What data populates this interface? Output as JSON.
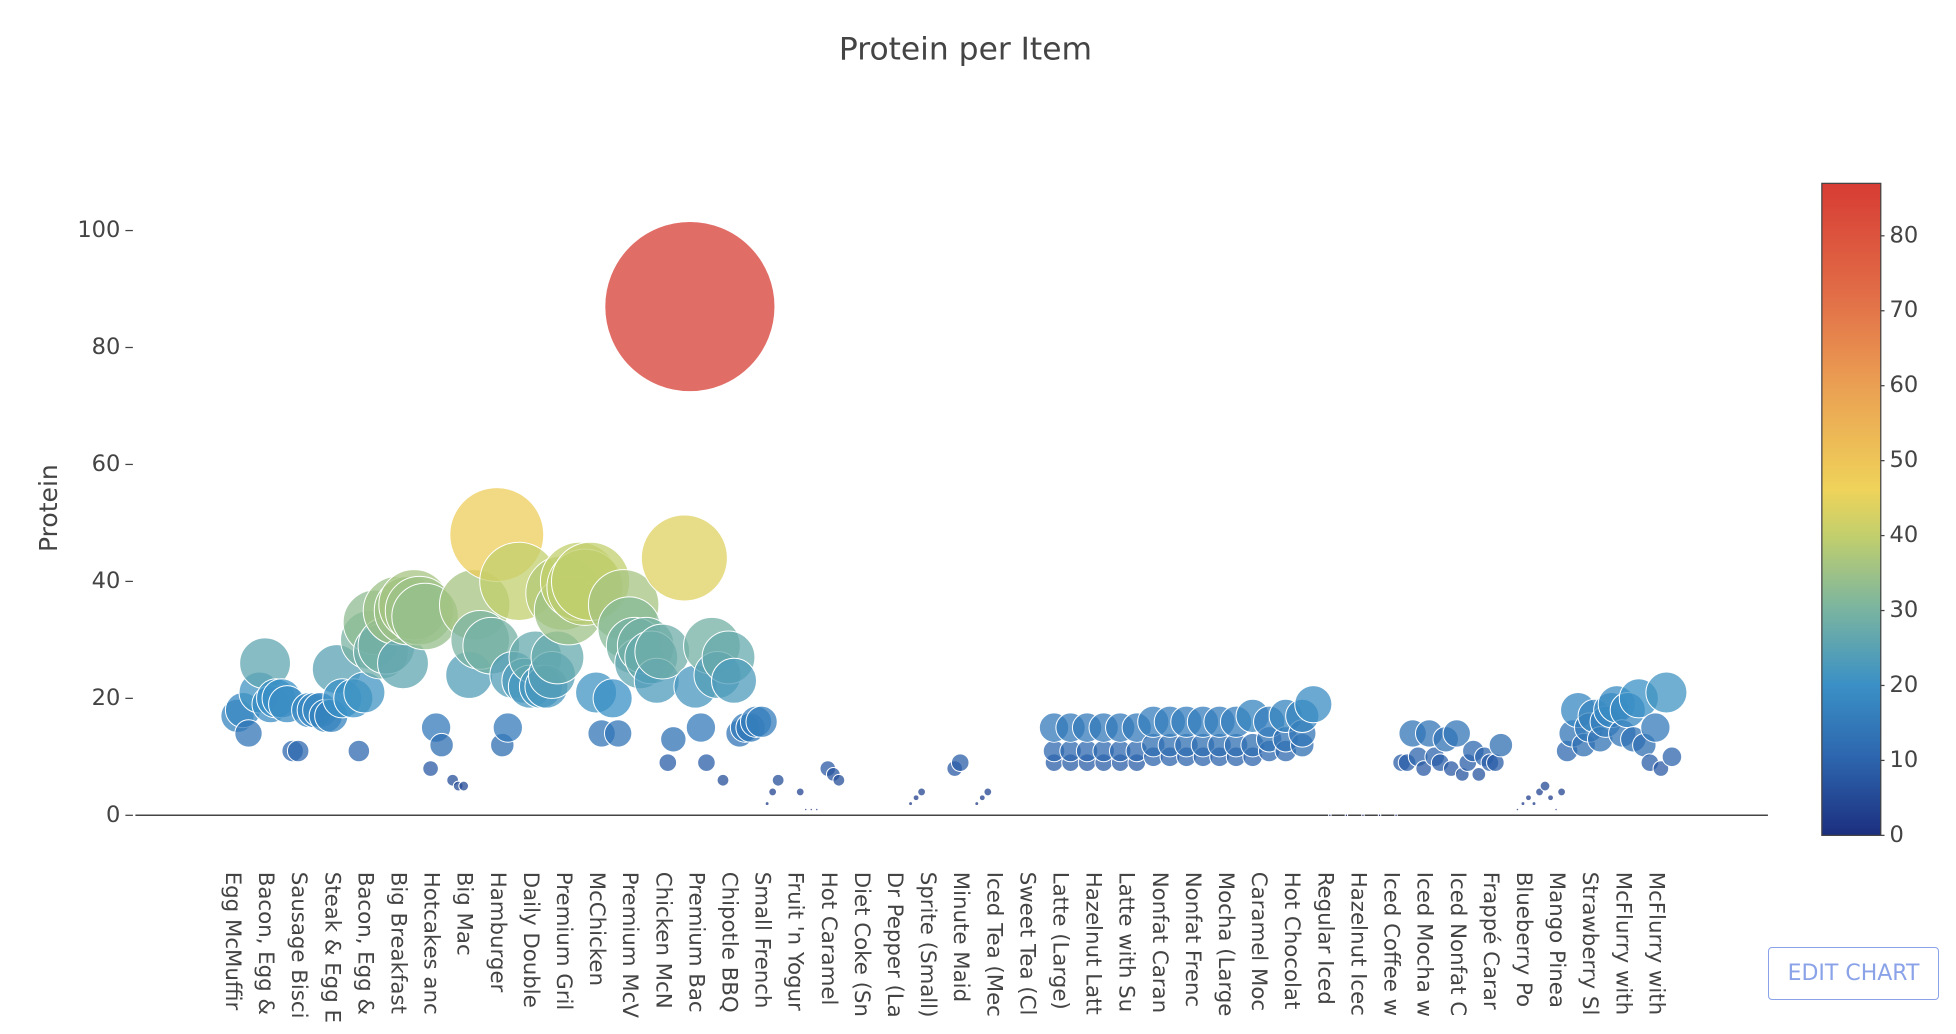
{
  "chart_data": {
    "type": "scatter",
    "title": "Protein per Item",
    "ylabel": "Protein",
    "x": [
      1,
      2,
      3,
      5,
      6,
      7,
      8,
      9,
      10,
      11,
      12,
      14,
      15,
      16,
      17,
      18,
      19,
      20,
      22,
      23,
      24,
      25,
      26,
      27,
      28,
      30,
      31,
      32,
      33,
      34,
      35,
      36,
      37,
      38,
      40,
      41,
      42,
      43,
      44,
      45,
      47,
      48,
      49,
      50,
      51,
      52,
      53,
      54,
      55,
      56,
      57,
      58,
      59,
      60,
      61,
      63,
      64,
      65,
      66,
      67,
      69,
      70,
      71,
      72,
      73,
      74,
      75,
      76,
      77,
      78,
      79,
      80,
      82,
      83,
      84,
      85,
      86,
      87,
      88,
      89,
      90,
      91,
      92,
      93,
      94,
      95,
      96,
      97,
      98,
      99,
      103,
      104,
      105,
      106,
      108,
      109,
      110,
      123,
      124,
      125,
      131,
      132,
      135,
      136,
      137,
      149,
      149,
      149,
      152,
      152,
      152,
      155,
      155,
      155,
      158,
      158,
      158,
      161,
      161,
      161,
      164,
      164,
      164,
      167,
      167,
      167,
      170,
      170,
      170,
      173,
      173,
      173,
      176,
      176,
      176,
      179,
      179,
      179,
      182,
      182,
      182,
      185,
      185,
      185,
      188,
      188,
      188,
      191,
      191,
      191,
      194,
      194,
      194,
      196,
      199,
      202,
      205,
      208,
      211,
      212,
      213,
      214,
      215,
      216,
      217,
      218,
      219,
      220,
      221,
      222,
      223,
      224,
      225,
      226,
      227,
      228,
      229,
      230,
      233,
      234,
      235,
      236,
      237,
      238,
      239,
      240,
      241,
      242,
      243,
      244,
      245,
      246,
      247,
      248,
      249,
      250,
      251,
      252,
      253,
      254,
      255,
      256,
      257,
      258,
      259,
      260,
      261
    ],
    "y": [
      17,
      18,
      14,
      21,
      26,
      19,
      20,
      20,
      19,
      11,
      11,
      18,
      18,
      18,
      17,
      17,
      25,
      20,
      20,
      11,
      21,
      30,
      33,
      28,
      29,
      35,
      26,
      35,
      36,
      35,
      34,
      8,
      15,
      12,
      6,
      5,
      5,
      24,
      36,
      30,
      29,
      48,
      12,
      15,
      24,
      40,
      23,
      22,
      27,
      22,
      22,
      24,
      27,
      38,
      35,
      40,
      39,
      40,
      21,
      14,
      20,
      14,
      36,
      32,
      29,
      26,
      29,
      27,
      23,
      28,
      9,
      13,
      44,
      87,
      22,
      15,
      9,
      29,
      24,
      6,
      27,
      23,
      14,
      15,
      15,
      16,
      16,
      2,
      4,
      6,
      4,
      1,
      1,
      1,
      8,
      7,
      6,
      2,
      3,
      4,
      8,
      9,
      2,
      3,
      4,
      9,
      11,
      15,
      9,
      11,
      15,
      9,
      11,
      15,
      9,
      11,
      15,
      9,
      11,
      15,
      9,
      11,
      15,
      10,
      12,
      16,
      10,
      12,
      16,
      10,
      12,
      16,
      10,
      12,
      16,
      10,
      12,
      16,
      10,
      12,
      16,
      10,
      12,
      17,
      11,
      13,
      16,
      11,
      13,
      17,
      12,
      14,
      17,
      19,
      0,
      0,
      0,
      0,
      0,
      9,
      9,
      14,
      10,
      8,
      14,
      10,
      9,
      13,
      8,
      14,
      7,
      9,
      11,
      7,
      10,
      9,
      9,
      12,
      1,
      2,
      3,
      2,
      4,
      5,
      3,
      1,
      4,
      11,
      14,
      18,
      12,
      15,
      17,
      13,
      16,
      18,
      19,
      14,
      18,
      13,
      20,
      12,
      9,
      15,
      8,
      21,
      10
    ],
    "xlim": [
      -17.5,
      278.4
    ],
    "ylim": [
      0,
      110
    ],
    "yticks": [
      0,
      20,
      40,
      60,
      80,
      100
    ],
    "xticks": [
      {
        "value": 0,
        "label": "Egg McMuffir"
      },
      {
        "value": 6,
        "label": "Bacon, Egg &"
      },
      {
        "value": 12,
        "label": "Sausage Bisci"
      },
      {
        "value": 18,
        "label": "Steak & Egg E"
      },
      {
        "value": 24,
        "label": "Bacon, Egg &"
      },
      {
        "value": 30,
        "label": "Big Breakfast"
      },
      {
        "value": 36,
        "label": "Hotcakes anc"
      },
      {
        "value": 42,
        "label": "Big Mac"
      },
      {
        "value": 48,
        "label": "Hamburger"
      },
      {
        "value": 54,
        "label": "Daily Double"
      },
      {
        "value": 60,
        "label": "Premium Gril"
      },
      {
        "value": 66,
        "label": "McChicken"
      },
      {
        "value": 72,
        "label": "Premium McV"
      },
      {
        "value": 78,
        "label": "Chicken McN"
      },
      {
        "value": 84,
        "label": "Premium Bac"
      },
      {
        "value": 90,
        "label": "Chipotle BBQ"
      },
      {
        "value": 96,
        "label": "Small French"
      },
      {
        "value": 102,
        "label": "Fruit 'n Yogur"
      },
      {
        "value": 108,
        "label": "Hot Caramel"
      },
      {
        "value": 114,
        "label": "Diet Coke (Sn"
      },
      {
        "value": 120,
        "label": "Dr Pepper (La"
      },
      {
        "value": 126,
        "label": "Sprite (Small)"
      },
      {
        "value": 132,
        "label": "Minute Maid"
      },
      {
        "value": 138,
        "label": "Iced Tea (Mec"
      },
      {
        "value": 144,
        "label": "Sweet Tea (Cl"
      },
      {
        "value": 150,
        "label": "Latte (Large)"
      },
      {
        "value": 156,
        "label": "Hazelnut Latt"
      },
      {
        "value": 162,
        "label": "Latte with Su"
      },
      {
        "value": 168,
        "label": "Nonfat Caran"
      },
      {
        "value": 174,
        "label": "Nonfat Frenc"
      },
      {
        "value": 180,
        "label": "Mocha (Large"
      },
      {
        "value": 186,
        "label": "Caramel Moc"
      },
      {
        "value": 192,
        "label": "Hot Chocolat"
      },
      {
        "value": 198,
        "label": "Regular Iced"
      },
      {
        "value": 204,
        "label": "Hazelnut Icec"
      },
      {
        "value": 210,
        "label": "Iced Coffee w"
      },
      {
        "value": 216,
        "label": "Iced Mocha w"
      },
      {
        "value": 222,
        "label": "Iced Nonfat C"
      },
      {
        "value": 228,
        "label": "Frappé Carar"
      },
      {
        "value": 234,
        "label": "Blueberry Po"
      },
      {
        "value": 240,
        "label": "Mango Pinea"
      },
      {
        "value": 246,
        "label": "Strawberry Sl"
      },
      {
        "value": 252,
        "label": "McFlurry with"
      },
      {
        "value": 258,
        "label": "McFlurry with"
      }
    ],
    "colorbar": {
      "lim": [
        0,
        87
      ],
      "ticks": [
        0,
        10,
        20,
        30,
        40,
        50,
        60,
        70,
        80
      ],
      "colorscale": [
        [
          0,
          "#1c2f7f"
        ],
        [
          0.12,
          "#2d66ae"
        ],
        [
          0.23,
          "#3a90c6"
        ],
        [
          0.35,
          "#7cb59f"
        ],
        [
          0.46,
          "#c2cf6c"
        ],
        [
          0.53,
          "#efd35a"
        ],
        [
          0.7,
          "#ea9c52"
        ],
        [
          0.82,
          "#e27048"
        ],
        [
          1,
          "#d73c34"
        ]
      ]
    }
  },
  "edit_button": "EDIT CHART"
}
